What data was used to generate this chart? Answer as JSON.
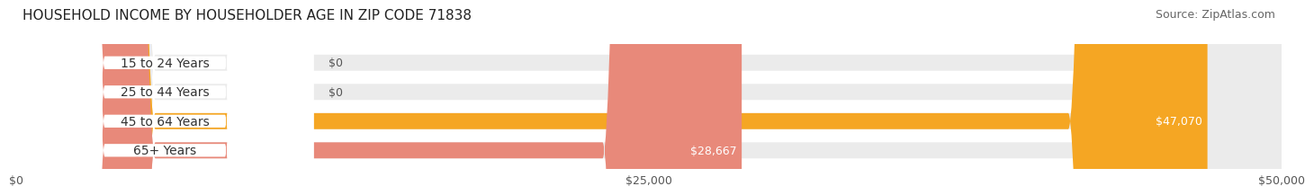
{
  "title": "HOUSEHOLD INCOME BY HOUSEHOLDER AGE IN ZIP CODE 71838",
  "source": "Source: ZipAtlas.com",
  "categories": [
    "15 to 24 Years",
    "25 to 44 Years",
    "45 to 64 Years",
    "65+ Years"
  ],
  "values": [
    0,
    0,
    47070,
    28667
  ],
  "bar_colors": [
    "#9b9fd4",
    "#f28b8b",
    "#f5a623",
    "#e8897a"
  ],
  "bar_bg_color": "#ebebeb",
  "xlim": [
    0,
    50000
  ],
  "xticks": [
    0,
    25000,
    50000
  ],
  "xtick_labels": [
    "$0",
    "$25,000",
    "$50,000"
  ],
  "value_labels": [
    "$0",
    "$0",
    "$47,070",
    "$28,667"
  ],
  "bar_height": 0.55,
  "title_fontsize": 11,
  "source_fontsize": 9,
  "label_fontsize": 10,
  "value_fontsize": 9,
  "tick_fontsize": 9,
  "bg_color": "#ffffff",
  "grid_color": "#cccccc"
}
